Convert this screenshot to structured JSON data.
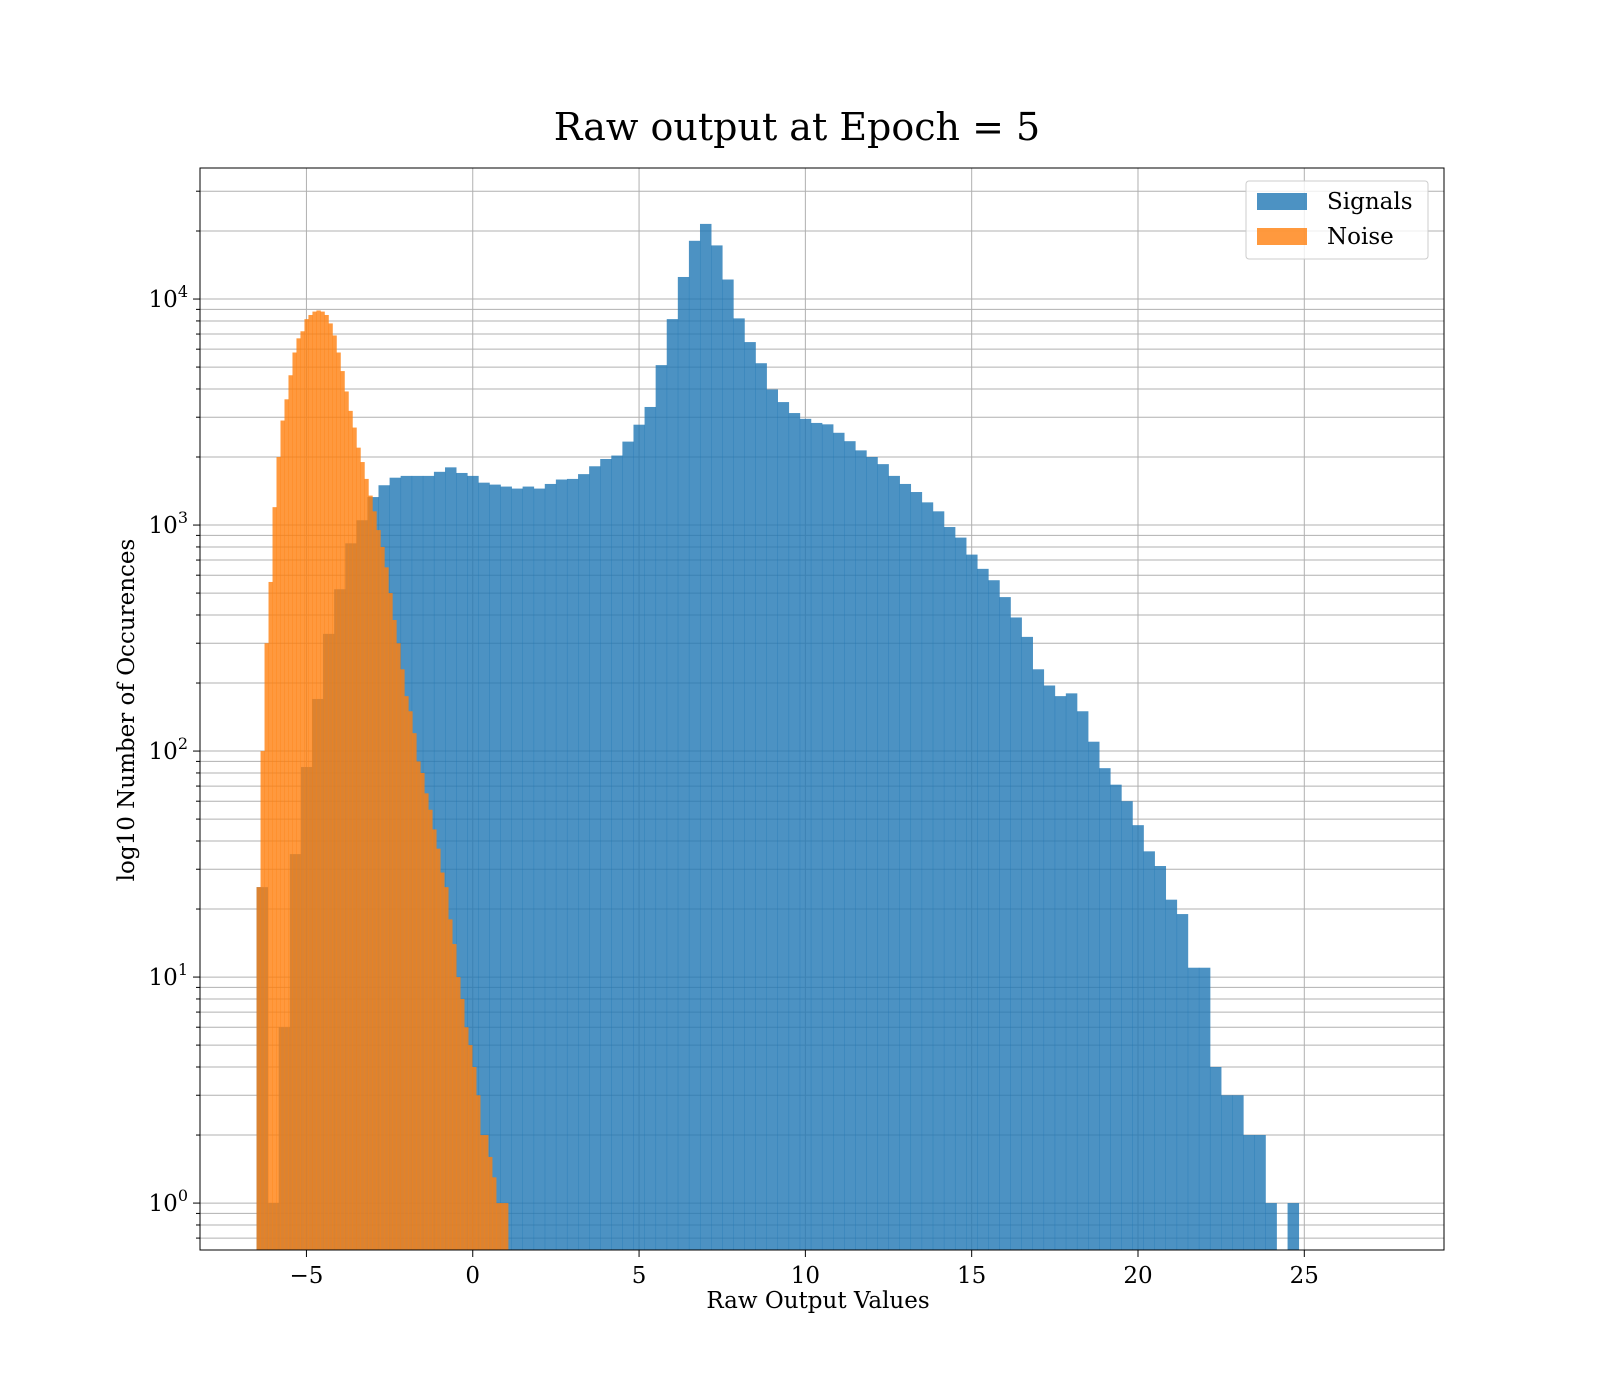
{
  "chart_data": {
    "type": "bar",
    "title": "Raw output at Epoch = 5",
    "xlabel": "Raw Output Values",
    "ylabel": "log10 Number of Occurences",
    "xlim": [
      -8.2,
      29.2
    ],
    "ylim": [
      0.62,
      38000
    ],
    "yscale": "log",
    "grid": true,
    "legend_position": "top-right",
    "colors": {
      "Signals": "#1f77b4",
      "Noise": "#ff7f0e"
    },
    "x_ticks": [
      {
        "value": -5,
        "label": "−5"
      },
      {
        "value": 0,
        "label": "0"
      },
      {
        "value": 5,
        "label": "5"
      },
      {
        "value": 10,
        "label": "10"
      },
      {
        "value": 15,
        "label": "15"
      },
      {
        "value": 20,
        "label": "20"
      },
      {
        "value": 25,
        "label": "25"
      }
    ],
    "y_ticks": [
      {
        "value": 1,
        "base": "10",
        "exp": "0"
      },
      {
        "value": 10,
        "base": "10",
        "exp": "1"
      },
      {
        "value": 100,
        "base": "10",
        "exp": "2"
      },
      {
        "value": 1000,
        "base": "10",
        "exp": "3"
      },
      {
        "value": 10000,
        "base": "10",
        "exp": "4"
      }
    ],
    "series": [
      {
        "name": "Signals",
        "bin_start": -6.5,
        "bin_width": 0.3333,
        "values": [
          25,
          1,
          6,
          35,
          85,
          170,
          330,
          520,
          830,
          1050,
          1330,
          1500,
          1620,
          1650,
          1650,
          1650,
          1720,
          1800,
          1700,
          1650,
          1540,
          1510,
          1480,
          1450,
          1480,
          1450,
          1520,
          1590,
          1600,
          1680,
          1820,
          1960,
          2030,
          2340,
          2780,
          3330,
          5100,
          8150,
          12520,
          18100,
          21500,
          17270,
          12200,
          8210,
          6450,
          5200,
          3980,
          3500,
          3130,
          2950,
          2830,
          2790,
          2560,
          2350,
          2140,
          2000,
          1860,
          1650,
          1520,
          1400,
          1260,
          1150,
          980,
          880,
          740,
          640,
          570,
          480,
          390,
          320,
          230,
          195,
          175,
          180,
          150,
          110,
          84,
          71,
          60,
          47,
          36,
          31,
          22,
          19,
          11,
          11,
          4,
          3,
          3,
          2,
          2,
          1,
          0,
          1
        ]
      },
      {
        "name": "Noise",
        "bin_start": -6.5,
        "bin_width": 0.12,
        "values": [
          25,
          100,
          300,
          560,
          1200,
          2000,
          2900,
          3600,
          4600,
          5800,
          6700,
          7200,
          8150,
          8500,
          8800,
          8900,
          8800,
          8500,
          7800,
          6900,
          5800,
          4800,
          3900,
          3200,
          2700,
          2200,
          1900,
          1600,
          1350,
          1150,
          950,
          800,
          650,
          500,
          380,
          300,
          230,
          175,
          150,
          120,
          90,
          80,
          65,
          55,
          45,
          37,
          29,
          25,
          18,
          14,
          10,
          8,
          6,
          5,
          4,
          3,
          2,
          2,
          1.6,
          1.3,
          1,
          1,
          1
        ]
      }
    ]
  }
}
